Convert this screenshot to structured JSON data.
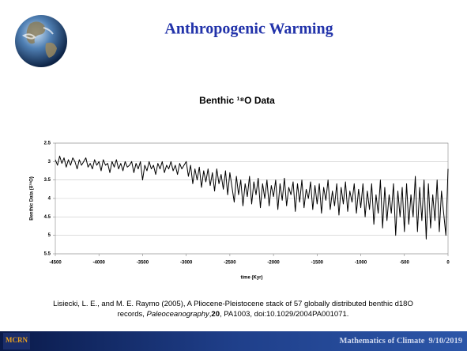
{
  "slide_title": "Anthropogenic Warming",
  "citation": [
    "Lisiecki, L. E., and M. E. Raymo (2005), A Pliocene-Pleistocene stack of 57 globally distributed benthic d18O",
    "records, ",
    "Paleoceanography",
    ",",
    "20",
    ", PA1003, doi:10.1029/2004PA001071."
  ],
  "logo": "MCRN",
  "footer": {
    "course": "Mathematics of Climate",
    "date": "9/10/2019"
  },
  "chart_data": {
    "type": "line",
    "title": "Benthic ¹⁸O Data",
    "x_label": "time (Kyr)",
    "y_label": "Benthic Data (δ¹⁸O)",
    "color": "#000000",
    "grid": true,
    "y_inverted": true,
    "xlim": [
      -4500,
      0
    ],
    "xticks": [
      -4500,
      -4000,
      -3500,
      -3000,
      -2500,
      -2000,
      -1500,
      -1000,
      -500,
      0
    ],
    "ylim": [
      2.5,
      5.5
    ],
    "yticks": [
      2.5,
      3,
      3.5,
      4,
      4.5,
      5,
      5.5
    ],
    "x": [
      -4500,
      -4475,
      -4450,
      -4425,
      -4400,
      -4375,
      -4350,
      -4325,
      -4300,
      -4275,
      -4250,
      -4225,
      -4200,
      -4175,
      -4150,
      -4125,
      -4100,
      -4075,
      -4050,
      -4025,
      -4000,
      -3975,
      -3950,
      -3925,
      -3900,
      -3875,
      -3850,
      -3825,
      -3800,
      -3775,
      -3750,
      -3725,
      -3700,
      -3675,
      -3650,
      -3625,
      -3600,
      -3575,
      -3550,
      -3525,
      -3500,
      -3475,
      -3450,
      -3425,
      -3400,
      -3375,
      -3350,
      -3325,
      -3300,
      -3275,
      -3250,
      -3225,
      -3200,
      -3175,
      -3150,
      -3125,
      -3100,
      -3075,
      -3050,
      -3025,
      -3000,
      -2975,
      -2950,
      -2925,
      -2900,
      -2875,
      -2850,
      -2825,
      -2800,
      -2775,
      -2750,
      -2725,
      -2700,
      -2675,
      -2650,
      -2625,
      -2600,
      -2575,
      -2550,
      -2525,
      -2500,
      -2475,
      -2450,
      -2425,
      -2400,
      -2375,
      -2350,
      -2325,
      -2300,
      -2275,
      -2250,
      -2225,
      -2200,
      -2175,
      -2150,
      -2125,
      -2100,
      -2075,
      -2050,
      -2025,
      -2000,
      -1975,
      -1950,
      -1925,
      -1900,
      -1875,
      -1850,
      -1825,
      -1800,
      -1775,
      -1750,
      -1725,
      -1700,
      -1675,
      -1650,
      -1625,
      -1600,
      -1575,
      -1550,
      -1525,
      -1500,
      -1475,
      -1450,
      -1425,
      -1400,
      -1375,
      -1350,
      -1325,
      -1300,
      -1275,
      -1250,
      -1225,
      -1200,
      -1175,
      -1150,
      -1125,
      -1100,
      -1075,
      -1050,
      -1025,
      -1000,
      -975,
      -950,
      -925,
      -900,
      -875,
      -850,
      -825,
      -800,
      -775,
      -750,
      -725,
      -700,
      -675,
      -650,
      -625,
      -600,
      -575,
      -550,
      -525,
      -500,
      -475,
      -450,
      -425,
      -400,
      -375,
      -350,
      -325,
      -300,
      -275,
      -250,
      -225,
      -200,
      -175,
      -150,
      -125,
      -100,
      -75,
      -50,
      -25,
      0
    ],
    "values": [
      2.95,
      3.1,
      2.85,
      3.05,
      2.9,
      3.15,
      2.95,
      3.1,
      2.9,
      3.0,
      3.2,
      2.95,
      3.1,
      3.0,
      2.9,
      3.15,
      3.05,
      3.2,
      2.95,
      3.1,
      3.0,
      3.25,
      2.95,
      3.1,
      3.05,
      3.3,
      3.0,
      3.15,
      2.95,
      3.2,
      3.05,
      3.25,
      3.0,
      3.15,
      3.1,
      3.0,
      3.3,
      3.05,
      3.2,
      3.0,
      3.5,
      3.1,
      3.25,
      3.0,
      3.2,
      3.1,
      3.35,
      3.05,
      3.2,
      3.0,
      3.3,
      3.1,
      3.2,
      3.0,
      3.25,
      3.1,
      3.35,
      3.05,
      3.2,
      3.1,
      3.0,
      3.4,
      3.1,
      3.6,
      3.2,
      3.5,
      3.15,
      3.7,
      3.25,
      3.55,
      3.2,
      3.65,
      3.3,
      3.8,
      3.2,
      3.6,
      3.35,
      3.75,
      3.25,
      3.9,
      3.3,
      3.7,
      4.1,
      3.4,
      3.9,
      3.5,
      4.2,
      3.6,
      3.95,
      3.4,
      4.15,
      3.55,
      3.9,
      3.45,
      4.25,
      3.6,
      4.0,
      3.5,
      4.2,
      3.65,
      3.95,
      3.5,
      4.3,
      3.6,
      4.05,
      3.45,
      4.2,
      3.7,
      3.9,
      3.55,
      4.35,
      3.6,
      4.1,
      3.5,
      4.25,
      3.75,
      4.0,
      3.55,
      4.3,
      3.65,
      4.15,
      3.6,
      4.4,
      3.7,
      4.05,
      3.5,
      4.3,
      3.8,
      4.2,
      3.6,
      4.45,
      3.7,
      4.15,
      3.55,
      4.35,
      3.8,
      4.1,
      3.6,
      4.4,
      3.75,
      4.25,
      3.6,
      4.5,
      3.8,
      4.3,
      3.6,
      4.7,
      3.9,
      4.4,
      3.5,
      4.8,
      3.7,
      4.6,
      3.9,
      4.4,
      3.6,
      5.0,
      3.8,
      4.5,
      3.7,
      4.9,
      3.6,
      4.7,
      3.9,
      4.5,
      3.4,
      4.9,
      3.7,
      4.6,
      3.5,
      5.1,
      3.6,
      4.8,
      3.9,
      4.6,
      3.5,
      4.9,
      3.8,
      4.4,
      5.0,
      3.2
    ]
  }
}
